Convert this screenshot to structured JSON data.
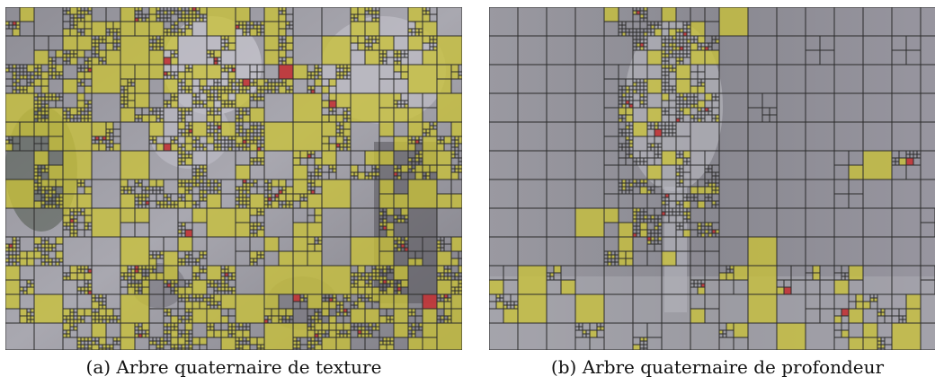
{
  "figure": {
    "panels": [
      {
        "id": "a",
        "caption": "(a) Arbre quaternaire de texture",
        "image_subject": "grayscale video frame with balloons, plant and person overlaid with quadtree block partition"
      },
      {
        "id": "b",
        "caption": "(b) Arbre quaternaire de profondeur",
        "image_subject": "grayscale depth map overlaid with quadtree block partition"
      }
    ],
    "colors": {
      "block_highlight": "#c9c23a",
      "block_flag": "#c0393b",
      "grid_line": "#2b2b2b",
      "texture_base": "#9b9aa2",
      "depth_base": "#8f8e96"
    }
  }
}
